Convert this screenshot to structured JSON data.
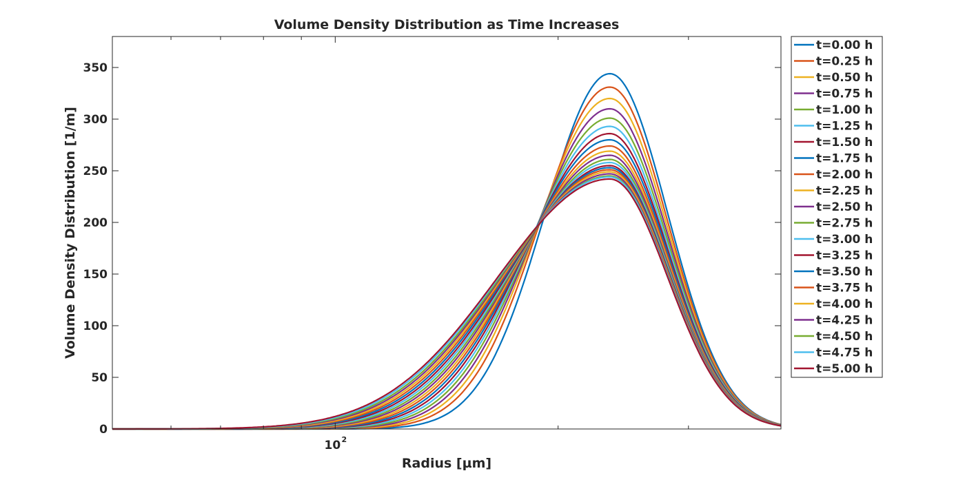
{
  "chart_data": {
    "type": "line",
    "title": "Volume Density Distribution as Time Increases",
    "xlabel": "Radius [µm]",
    "ylabel": "Volume Density Distribution [1/m]",
    "xscale": "log",
    "xlim": [
      50,
      400
    ],
    "ylim": [
      0,
      380
    ],
    "x_tick_labels": [
      {
        "base": "10",
        "exp": "2",
        "value": 100
      }
    ],
    "y_ticks": [
      0,
      50,
      100,
      150,
      200,
      250,
      300,
      350
    ],
    "legend_position": "outside-right",
    "grid": false,
    "colors": [
      "#0072BD",
      "#D95319",
      "#EDB120",
      "#7E2F8E",
      "#77AC30",
      "#4DBEEE",
      "#A2142F"
    ],
    "curve_model": {
      "peak_radius_um": 235,
      "left_sigma_log10_start": 0.0875,
      "left_sigma_log10_end": 0.1517,
      "right_sigma_log10": 0.0781
    },
    "series": [
      {
        "name": "t=0.00 h",
        "peak": 344
      },
      {
        "name": "t=0.25 h",
        "peak": 331
      },
      {
        "name": "t=0.50 h",
        "peak": 320
      },
      {
        "name": "t=0.75 h",
        "peak": 310
      },
      {
        "name": "t=1.00 h",
        "peak": 301
      },
      {
        "name": "t=1.25 h",
        "peak": 293
      },
      {
        "name": "t=1.50 h",
        "peak": 286
      },
      {
        "name": "t=1.75 h",
        "peak": 280
      },
      {
        "name": "t=2.00 h",
        "peak": 274
      },
      {
        "name": "t=2.25 h",
        "peak": 269
      },
      {
        "name": "t=2.50 h",
        "peak": 265
      },
      {
        "name": "t=2.75 h",
        "peak": 261
      },
      {
        "name": "t=3.00 h",
        "peak": 258
      },
      {
        "name": "t=3.25 h",
        "peak": 255
      },
      {
        "name": "t=3.50 h",
        "peak": 253
      },
      {
        "name": "t=3.75 h",
        "peak": 251
      },
      {
        "name": "t=4.00 h",
        "peak": 249
      },
      {
        "name": "t=4.25 h",
        "peak": 247
      },
      {
        "name": "t=4.50 h",
        "peak": 245
      },
      {
        "name": "t=4.75 h",
        "peak": 244
      },
      {
        "name": "t=5.00 h",
        "peak": 242
      }
    ]
  }
}
